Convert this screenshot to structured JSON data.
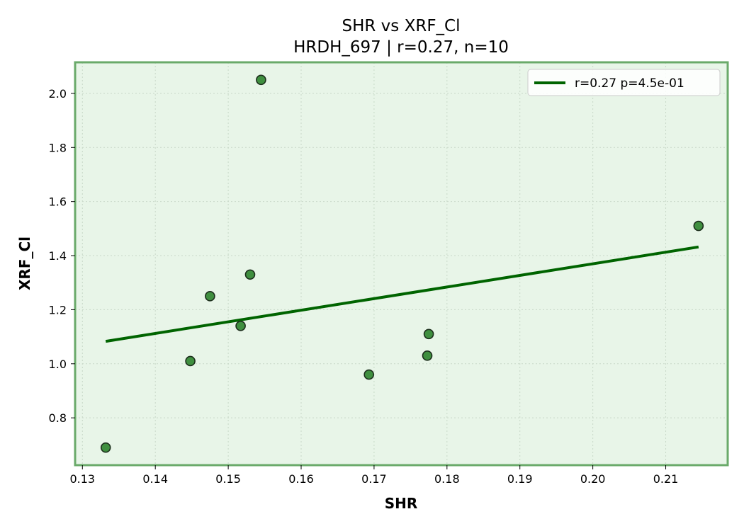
{
  "chart_data": {
    "type": "scatter",
    "title": "SHR vs XRF_Cl",
    "subtitle": "HRDH_697 | r=0.27, n=10",
    "xlabel": "SHR",
    "ylabel": "XRF_Cl",
    "xlim": [
      0.129,
      0.2185
    ],
    "ylim": [
      0.625,
      2.115
    ],
    "xticks": [
      0.13,
      0.14,
      0.15,
      0.16,
      0.17,
      0.18,
      0.19,
      0.2,
      0.21
    ],
    "xtick_labels": [
      "0.13",
      "0.14",
      "0.15",
      "0.16",
      "0.17",
      "0.18",
      "0.19",
      "0.20",
      "0.21"
    ],
    "yticks": [
      0.8,
      1.0,
      1.2,
      1.4,
      1.6,
      1.8,
      2.0
    ],
    "ytick_labels": [
      "0.8",
      "1.0",
      "1.2",
      "1.4",
      "1.6",
      "1.8",
      "2.0"
    ],
    "grid": true,
    "legend_position": "top-right",
    "points": [
      {
        "x": 0.1332,
        "y": 0.69
      },
      {
        "x": 0.1448,
        "y": 1.01
      },
      {
        "x": 0.1475,
        "y": 1.25
      },
      {
        "x": 0.1517,
        "y": 1.14
      },
      {
        "x": 0.153,
        "y": 1.33
      },
      {
        "x": 0.1545,
        "y": 2.05
      },
      {
        "x": 0.1693,
        "y": 0.96
      },
      {
        "x": 0.1773,
        "y": 1.03
      },
      {
        "x": 0.1775,
        "y": 1.11
      },
      {
        "x": 0.2145,
        "y": 1.51
      }
    ],
    "fit_line": {
      "x": [
        0.1332,
        0.2145
      ],
      "y": [
        1.083,
        1.432
      ]
    },
    "legend_label": "r=0.27  p=4.5e-01",
    "colors": {
      "background": "#e8f5e8",
      "frame": "#6aaa6a",
      "marker_fill": "#3f8f3f",
      "marker_edge": "#1c2e1c",
      "fit_line": "#006400",
      "grid": "#c8d8c8"
    }
  }
}
